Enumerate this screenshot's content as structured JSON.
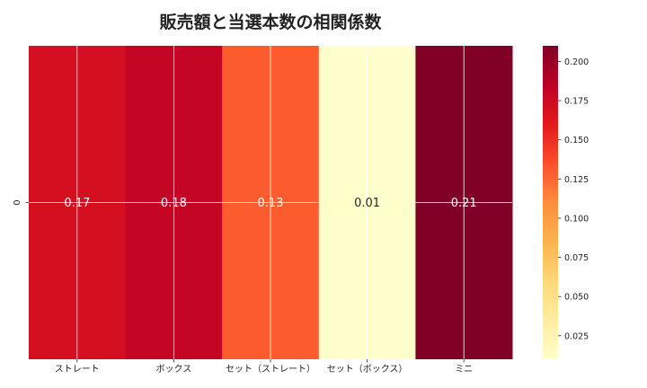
{
  "chart_data": {
    "type": "heatmap",
    "title": "販売額と当選本数の相関係数",
    "x_categories": [
      "ストレート",
      "ボックス",
      "セット（ストレート）",
      "セット（ボックス）",
      "ミニ"
    ],
    "y_categories": [
      "0"
    ],
    "values": [
      [
        0.17,
        0.18,
        0.13,
        0.01,
        0.21
      ]
    ],
    "value_labels": [
      "0.17",
      "0.18",
      "0.13",
      "0.01",
      "0.21"
    ],
    "colorscale": "YlOrRd",
    "colorbar": {
      "range": [
        0.01,
        0.21
      ],
      "ticks": [
        0.025,
        0.05,
        0.075,
        0.1,
        0.125,
        0.15,
        0.175,
        0.2
      ],
      "tick_labels": [
        "0.025",
        "0.050",
        "0.075",
        "0.100",
        "0.125",
        "0.150",
        "0.175",
        "0.200"
      ]
    },
    "grid": true,
    "colors": {
      "gridline": "#ffffff",
      "label_light": "#ffffff",
      "label_dark": "#262626",
      "text": "#222222"
    }
  }
}
